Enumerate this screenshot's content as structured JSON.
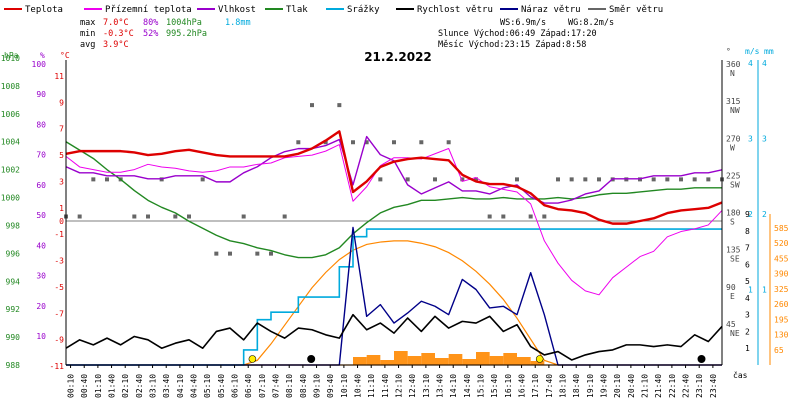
{
  "chart_data": {
    "type": "line",
    "title": "21.2.2022",
    "legend": [
      {
        "name": "Teplota",
        "color": "#dd0000"
      },
      {
        "name": "Přízemní teplota",
        "color": "#ee00ee"
      },
      {
        "name": "Vlhkost",
        "color": "#9900cc"
      },
      {
        "name": "Tlak",
        "color": "#228822"
      },
      {
        "name": "Srážky",
        "color": "#00aadd"
      },
      {
        "name": "Rychlost větru",
        "color": "#000000"
      },
      {
        "name": "Náraz větru",
        "color": "#000088"
      },
      {
        "name": "Směr větru",
        "color": "#666666"
      }
    ],
    "stats": {
      "max_label": "max",
      "max_temp": "7.0°C",
      "max_hum": "80%",
      "max_press": "1004hPa",
      "max_rain": "1.8mm",
      "min_label": "min",
      "min_temp": "-0.3°C",
      "min_hum": "52%",
      "min_press": "995.2hPa",
      "avg_label": "avg",
      "avg_temp": "3.9°C"
    },
    "info": {
      "ws": "WS:6.9m/s",
      "wg": "WG:8.2m/s",
      "sun": "Slunce Východ:06:49  Západ:17:20",
      "moon": "Měsíc  Východ:23:15  Západ:8:58"
    },
    "axes": {
      "hpa": {
        "label": "hPa",
        "ticks": [
          "988",
          "990",
          "992",
          "994",
          "996",
          "998",
          "1000",
          "1002",
          "1004",
          "1006",
          "1008",
          "1010"
        ]
      },
      "hum": {
        "label": "%",
        "ticks": [
          "10",
          "20",
          "30",
          "40",
          "50",
          "60",
          "70",
          "80",
          "90",
          "100"
        ]
      },
      "temp": {
        "label": "°C",
        "ticks": [
          "-11",
          "-9",
          "-7",
          "-5",
          "-3",
          "-1",
          "0",
          "1",
          "3",
          "5",
          "7",
          "9",
          "11"
        ]
      },
      "dir": {
        "label": "°",
        "ticks": [
          "45\nNE",
          "90\nE",
          "135\nSE",
          "180\nS",
          "225\nSW",
          "270\nW",
          "315\nNW",
          "360\nN"
        ]
      },
      "ms": {
        "label": "m/s",
        "ticks": [
          "1",
          "2",
          "3",
          "4"
        ]
      },
      "mm": {
        "label": "mm",
        "ticks": [
          "1",
          "2",
          "3",
          "4"
        ]
      },
      "wms": {
        "ticks": [
          "1",
          "2",
          "3",
          "4",
          "5",
          "6",
          "7",
          "8",
          "9"
        ]
      },
      "wm2": {
        "ticks": [
          "65",
          "130",
          "195",
          "260",
          "325",
          "390",
          "455",
          "520",
          "585"
        ]
      },
      "x": {
        "label": "čas",
        "ticks": [
          "00:10",
          "00:40",
          "01:10",
          "01:40",
          "02:10",
          "02:40",
          "03:10",
          "03:40",
          "04:10",
          "04:40",
          "05:10",
          "05:40",
          "06:10",
          "06:40",
          "07:10",
          "07:40",
          "08:10",
          "08:40",
          "09:10",
          "09:40",
          "10:10",
          "10:40",
          "11:10",
          "11:40",
          "12:10",
          "12:40",
          "13:10",
          "13:40",
          "14:10",
          "14:40",
          "15:10",
          "15:40",
          "16:10",
          "16:40",
          "17:10",
          "17:40",
          "18:10",
          "18:40",
          "19:10",
          "19:40",
          "20:10",
          "20:40",
          "21:10",
          "21:40",
          "22:10",
          "22:40",
          "23:10",
          "23:40"
        ]
      }
    },
    "x_hours": [
      0,
      0.5,
      1,
      1.5,
      2,
      2.5,
      3,
      3.5,
      4,
      4.5,
      5,
      5.5,
      6,
      6.5,
      7,
      7.5,
      8,
      8.5,
      9,
      9.5,
      10,
      10.5,
      11,
      11.5,
      12,
      12.5,
      13,
      13.5,
      14,
      14.5,
      15,
      15.5,
      16,
      16.5,
      17,
      17.5,
      18,
      18.5,
      19,
      19.5,
      20,
      20.5,
      21,
      21.5,
      22,
      22.5,
      23,
      23.5,
      24
    ],
    "series": [
      {
        "name": "Teplota",
        "unit": "°C",
        "values": [
          5.1,
          5.3,
          5.3,
          5.3,
          5.3,
          5.2,
          5.0,
          5.1,
          5.3,
          5.4,
          5.2,
          5.0,
          4.9,
          4.9,
          4.9,
          4.9,
          4.9,
          5.1,
          5.5,
          6.1,
          6.8,
          2.2,
          3.0,
          4.1,
          4.5,
          4.7,
          4.8,
          4.7,
          4.6,
          3.5,
          3.0,
          2.8,
          2.8,
          2.6,
          2.1,
          1.2,
          0.9,
          0.8,
          0.6,
          0.1,
          -0.2,
          -0.2,
          0.0,
          0.2,
          0.6,
          0.8,
          0.9,
          1.0,
          1.4
        ]
      },
      {
        "name": "Přízemní teplota",
        "unit": "°C",
        "values": [
          4.9,
          4.1,
          3.9,
          3.7,
          3.7,
          3.9,
          4.3,
          4.1,
          4.0,
          3.8,
          3.7,
          3.8,
          4.1,
          4.1,
          4.3,
          4.4,
          4.8,
          4.9,
          5.0,
          5.3,
          5.8,
          1.5,
          2.6,
          4.2,
          4.8,
          4.8,
          4.7,
          5.1,
          5.5,
          3.0,
          3.3,
          2.6,
          2.4,
          2.2,
          1.3,
          -1.5,
          -3.2,
          -4.5,
          -5.3,
          -5.6,
          -4.3,
          -3.5,
          -2.7,
          -2.3,
          -1.2,
          -0.8,
          -0.6,
          -0.3,
          0.8
        ]
      },
      {
        "name": "Vlhkost",
        "unit": "%",
        "values": [
          66,
          64,
          64,
          63,
          63,
          63,
          62,
          62,
          63,
          63,
          63,
          61,
          61,
          64,
          66,
          69,
          71,
          72,
          72,
          73,
          75,
          60,
          76,
          70,
          68,
          60,
          57,
          59,
          61,
          58,
          58,
          57,
          59,
          60,
          56,
          54,
          54,
          55,
          57,
          58,
          62,
          62,
          62,
          63,
          63,
          63,
          64,
          64,
          65
        ]
      },
      {
        "name": "Tlak",
        "unit": "hPa",
        "values": [
          1004.0,
          1003.4,
          1002.8,
          1002.0,
          1001.3,
          1000.5,
          999.8,
          999.3,
          998.9,
          998.3,
          997.8,
          997.3,
          996.9,
          996.7,
          996.4,
          996.2,
          995.9,
          995.7,
          995.7,
          995.9,
          996.4,
          997.4,
          998.2,
          998.9,
          999.3,
          999.5,
          999.8,
          999.8,
          999.9,
          1000.0,
          999.9,
          999.9,
          1000.0,
          999.9,
          999.9,
          999.9,
          1000.0,
          999.9,
          1000.0,
          1000.2,
          1000.3,
          1000.3,
          1000.4,
          1000.5,
          1000.6,
          1000.6,
          1000.7,
          1000.7,
          1000.7
        ]
      },
      {
        "name": "Srážky",
        "unit": "mm",
        "values": [
          0,
          0,
          0,
          0,
          0,
          0,
          0,
          0,
          0,
          0,
          0,
          0,
          0,
          0.2,
          0.6,
          0.7,
          0.7,
          0.9,
          0.9,
          0.9,
          1.3,
          1.7,
          1.8,
          1.8,
          1.8,
          1.8,
          1.8,
          1.8,
          1.8,
          1.8,
          1.8,
          1.8,
          1.8,
          1.8,
          1.8,
          1.8,
          1.8,
          1.8,
          1.8,
          1.8,
          1.8,
          1.8,
          1.8,
          1.8,
          1.8,
          1.8,
          1.8,
          1.8,
          1.8
        ]
      },
      {
        "name": "Rychlost větru",
        "unit": "m/s",
        "values": [
          1.0,
          1.5,
          1.2,
          1.6,
          1.2,
          1.7,
          1.5,
          1.0,
          1.3,
          1.5,
          1.0,
          2.0,
          2.2,
          1.5,
          2.5,
          2.0,
          1.6,
          2.2,
          2.1,
          1.8,
          1.6,
          3.0,
          2.1,
          2.5,
          1.9,
          2.8,
          2.0,
          2.9,
          2.2,
          2.6,
          2.5,
          2.9,
          2.0,
          2.4,
          1.1,
          0.6,
          0.8,
          0.3,
          0.6,
          0.8,
          0.9,
          1.2,
          1.2,
          1.1,
          1.2,
          1.1,
          1.8,
          1.4,
          2.3
        ]
      },
      {
        "name": "Náraz větru",
        "unit": "m/s",
        "values": [
          0,
          0,
          0,
          0,
          0,
          0,
          0,
          0,
          0,
          0,
          0,
          0,
          0,
          0,
          0,
          0,
          0,
          0,
          0,
          0,
          0,
          8.2,
          2.9,
          3.6,
          2.5,
          3.1,
          3.8,
          3.5,
          3.0,
          5.1,
          4.5,
          3.4,
          3.5,
          3.0,
          5.5,
          3.0,
          0,
          0,
          0,
          0,
          0,
          0,
          0,
          0,
          0,
          0,
          0,
          0,
          0
        ]
      },
      {
        "name": "Slunce",
        "unit": "W/m²",
        "values": [
          0,
          0,
          0,
          0,
          0,
          0,
          0,
          0,
          0,
          0,
          0,
          0,
          0,
          0,
          20,
          90,
          170,
          250,
          330,
          395,
          450,
          490,
          515,
          525,
          530,
          530,
          520,
          505,
          480,
          445,
          400,
          345,
          280,
          200,
          110,
          20,
          0,
          0,
          0,
          0,
          0,
          0,
          0,
          0,
          0,
          0,
          0,
          0,
          0
        ]
      }
    ]
  }
}
